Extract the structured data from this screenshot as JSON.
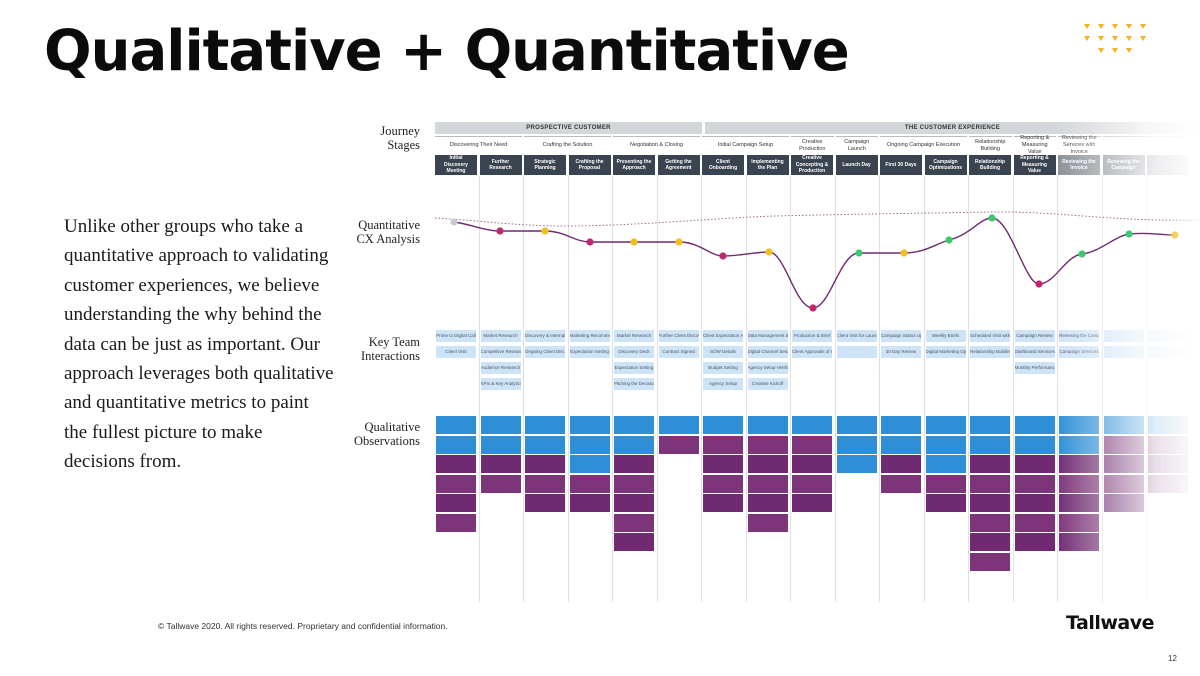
{
  "title": "Qualitative + Quantitative",
  "body_text": "Unlike other groups who take a quantitative approach to validating customer experiences, we believe understanding the why behind the data can be just as important. Our approach leverages both qualitative and quantitative metrics to paint the fullest picture to make decisions from.",
  "row_labels": {
    "journey": [
      "Journey",
      "Stages"
    ],
    "quant": [
      "Quantitative",
      "CX Analysis"
    ],
    "team": [
      "Key Team",
      "Interactions"
    ],
    "qual": [
      "Qualitative",
      "Observations"
    ]
  },
  "groups": [
    "PROSPECTIVE CUSTOMER",
    "THE CUSTOMER EXPERIENCE"
  ],
  "stage_groups": [
    "Discovering Their Need",
    "Crafting the Solution",
    "Negotiation & Closing",
    "Initial Campaign Setup",
    "Creative Production",
    "Campaign Launch",
    "Ongoing Campaign Execution",
    "Relationship Building",
    "Reporting & Measuring Value",
    "Reviewing the Services with Invoice",
    "",
    ""
  ],
  "stages": [
    "Initial Discovery Meeting",
    "Further Research",
    "Strategic Planning",
    "Crafting the Proposal",
    "Presenting the Approach",
    "Getting the Agreement",
    "Client Onboarding",
    "Implementing the Plan",
    "Creative Concepting & Production",
    "Launch Day",
    "First 30 Days",
    "Campaign Optimizations",
    "Relationship Building",
    "Reporting & Measuring Value",
    "Reviewing the Invoice",
    "Renewing the Campaign",
    ""
  ],
  "team_boxes": [
    [
      "Prime to Digital Call",
      "Client Visit"
    ],
    [
      "Market Research",
      "Competitive Research",
      "Audience Research",
      "KPIs & Key Analytics"
    ],
    [
      "Discovery & Internal Planning",
      "Ongoing Client Discovery"
    ],
    [
      "Marketing Recommendations",
      "Expectation Setting"
    ],
    [
      "Market Research",
      "Discovery Deck",
      "Expectation Setting",
      "Pitching the Decision"
    ],
    [
      "Further Client Discovery",
      "Contract Signed"
    ],
    [
      "Client Expectation Alignment",
      "SOW Details",
      "Budget Setting",
      "Agency Setup"
    ],
    [
      "Data Management & Traffic",
      "Digital Channel Setup",
      "Agency Setup Verification",
      "Creative Kickoff"
    ],
    [
      "Production & Brief",
      "Client Approvals of Creative"
    ],
    [
      "Client Visit for Launch Day",
      ""
    ],
    [
      "Campaign Status Updates",
      "30 Day Review"
    ],
    [
      "Weekly Briefs",
      "Digital Marketing Optimizations"
    ],
    [
      "Scheduled Visit with the Agency",
      "Relationship Building"
    ],
    [
      "Campaign Review",
      "Dashboard Services",
      "Monthly Performance Review"
    ],
    [
      "Renewing the Campaign",
      "Campaign Services"
    ],
    [
      "",
      ""
    ],
    [
      "",
      ""
    ]
  ],
  "footer": "© Tallwave 2020. All rights reserved. Proprietary and confidential information.",
  "logo": "Tallwave",
  "page_number": "12",
  "colors": {
    "dark": "#3a4350",
    "blue": "#2e8fd6",
    "purple": "#6f2a72",
    "pink": "#c0286d",
    "green": "#3cc86e",
    "yellow": "#f0c020",
    "accent": "#f5b21b"
  }
}
